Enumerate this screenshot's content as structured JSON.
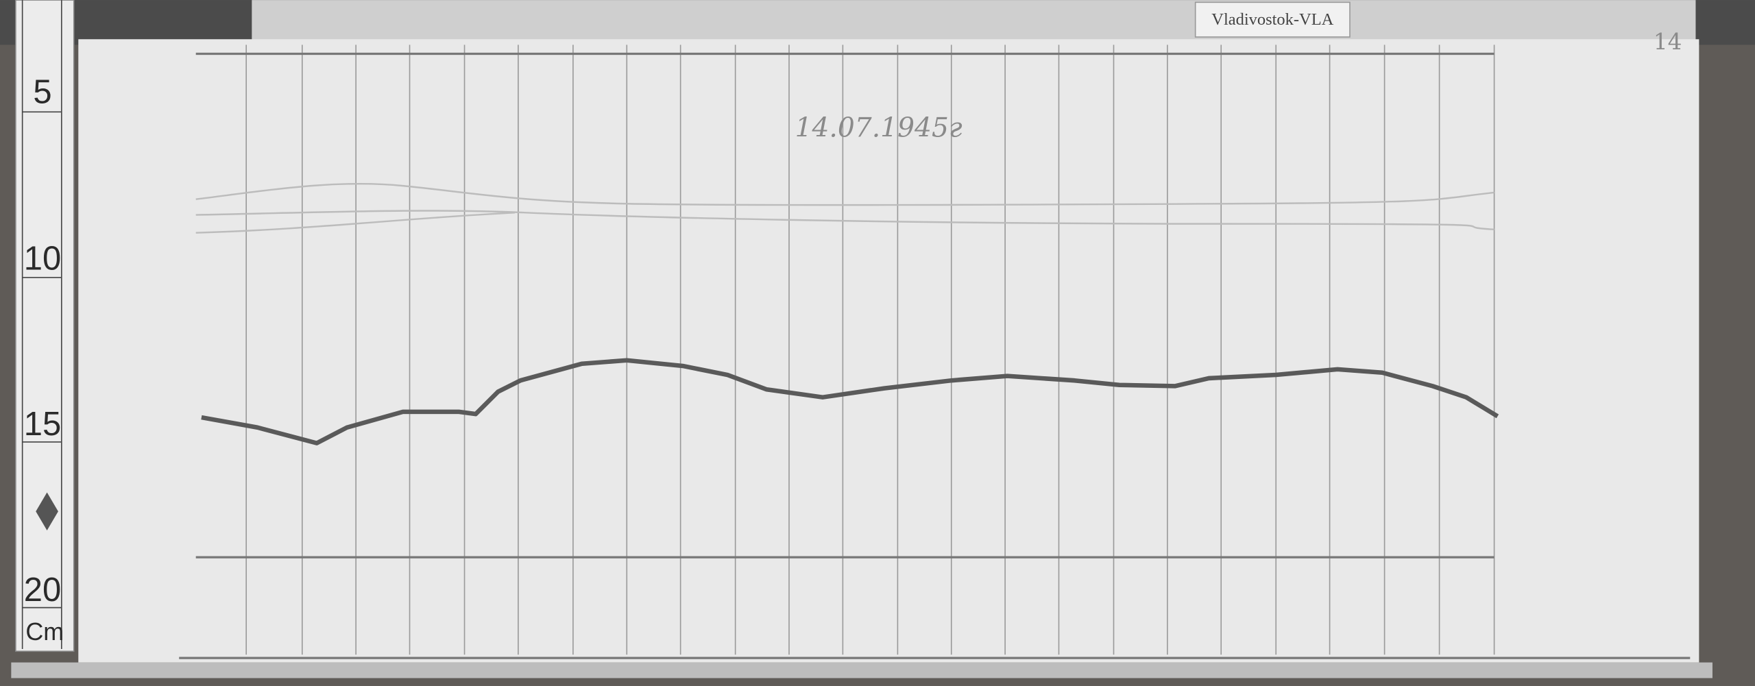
{
  "label_tag": "Vladivostok-VLA",
  "sheet_number": "14",
  "date": "14.07.1945г",
  "ruler": {
    "ticks": [
      "5",
      "10",
      "15",
      "20"
    ],
    "unit": "Cm"
  }
}
